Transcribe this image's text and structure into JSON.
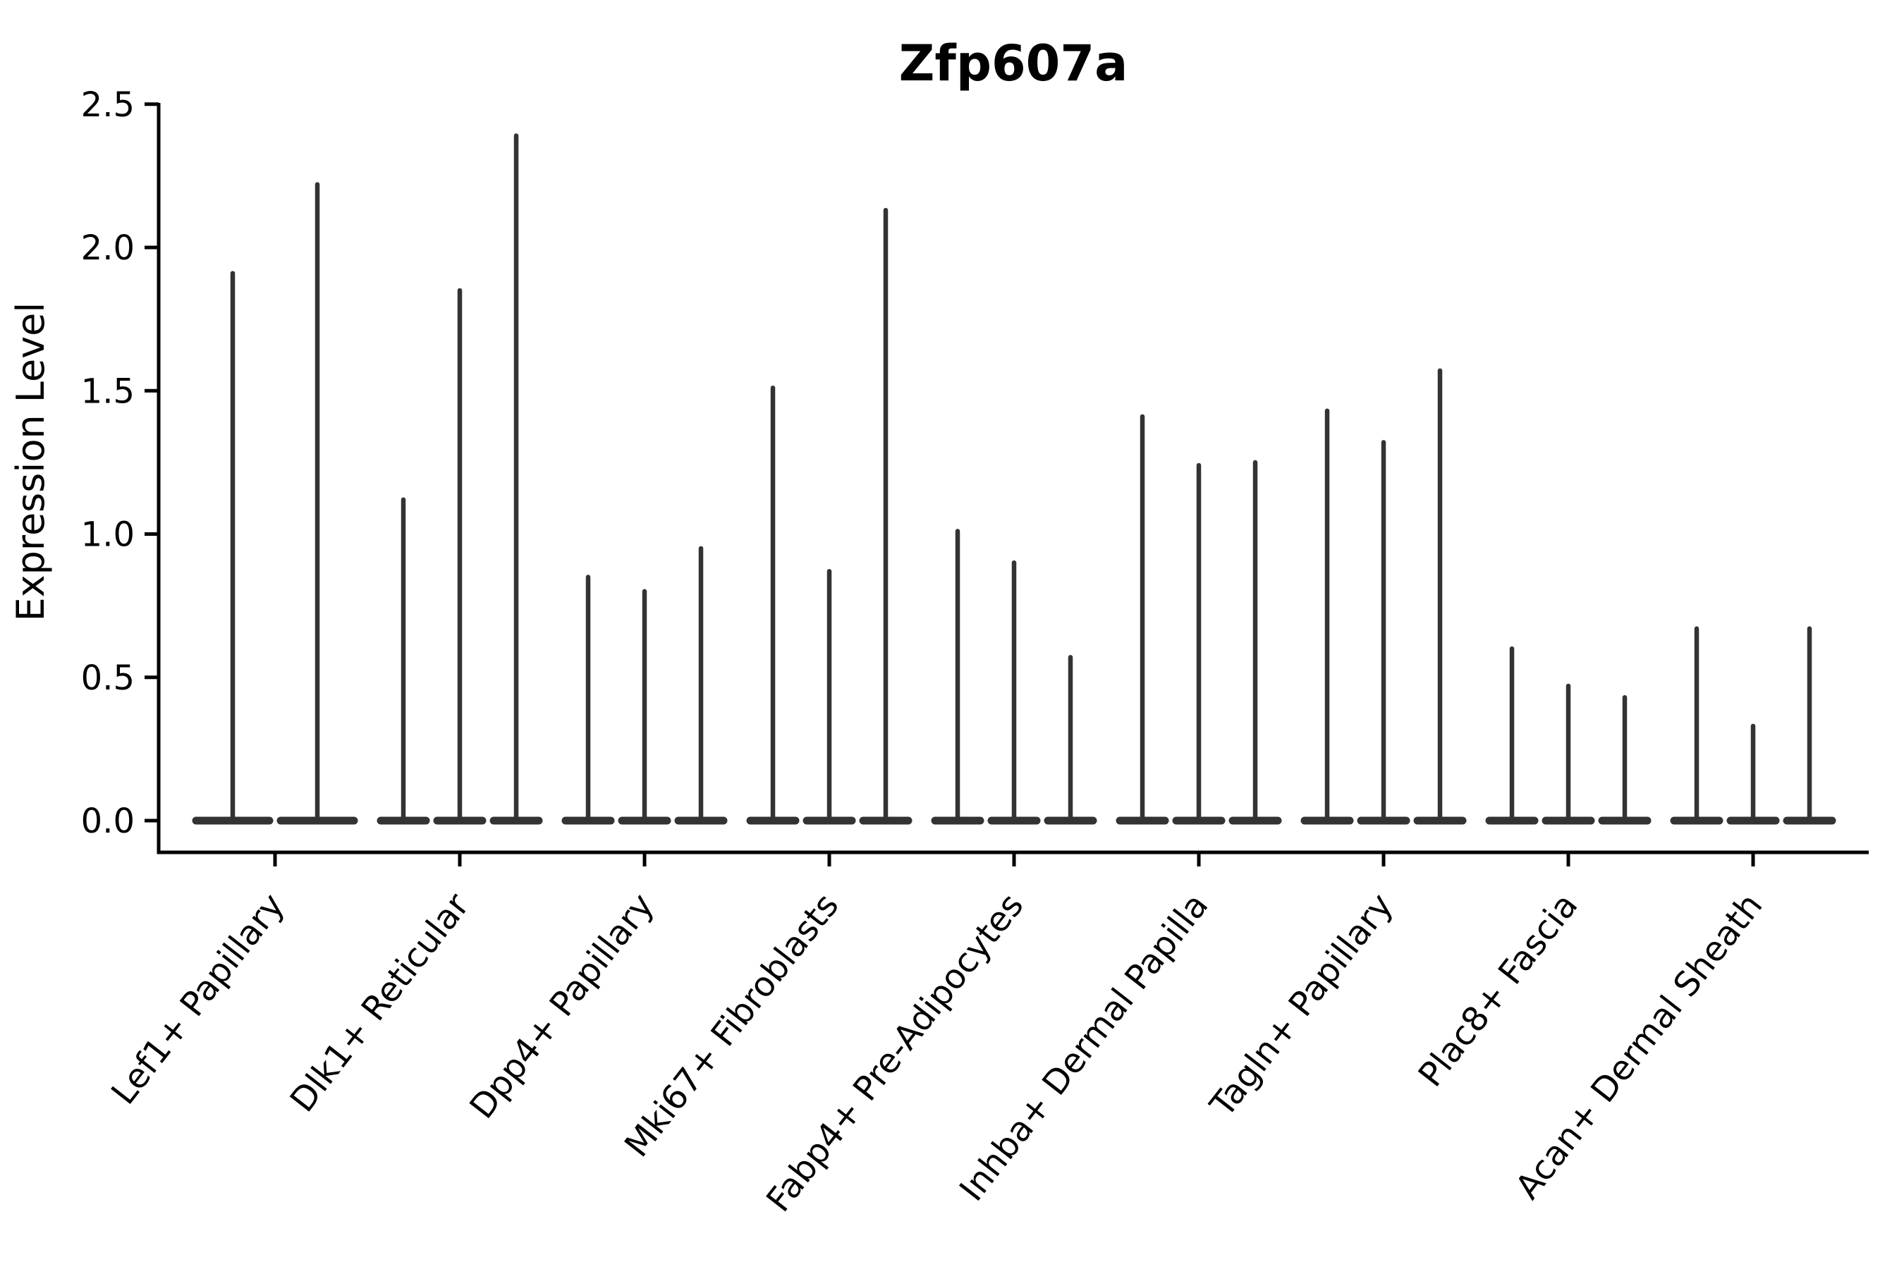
{
  "chart_data": {
    "type": "violin",
    "title": "Zfp607a",
    "xlabel": "",
    "ylabel": "Expression Level",
    "legend": "none",
    "grid": false,
    "ylim_display": [
      -0.11,
      2.5
    ],
    "y_tick_values": [
      0.0,
      0.5,
      1.0,
      1.5,
      2.0,
      2.5
    ],
    "y_tick_labels": [
      "0.0",
      "0.5",
      "1.0",
      "1.5",
      "2.0",
      "2.5"
    ],
    "categories": [
      "Lef1+ Papillary",
      "Dlk1+ Reticular",
      "Dpp4+ Papillary",
      "Mki67+ Fibroblasts",
      "Fabp4+ Pre-Adipocytes",
      "Inhba+ Dermal Papilla",
      "Tagln+ Papillary",
      "Plac8+ Fascia",
      "Acan+ Dermal Sheath"
    ],
    "groups": [
      {
        "label": "Lef1+ Papillary",
        "violin_peaks": [
          1.91,
          2.22
        ]
      },
      {
        "label": "Dlk1+ Reticular",
        "violin_peaks": [
          1.12,
          1.85,
          2.39
        ]
      },
      {
        "label": "Dpp4+ Papillary",
        "violin_peaks": [
          0.85,
          0.8,
          0.95
        ]
      },
      {
        "label": "Mki67+ Fibroblasts",
        "violin_peaks": [
          1.51,
          0.87,
          2.13
        ]
      },
      {
        "label": "Fabp4+ Pre-Adipocytes",
        "violin_peaks": [
          1.01,
          0.9,
          0.57
        ]
      },
      {
        "label": "Inhba+ Dermal Papilla",
        "violin_peaks": [
          1.41,
          1.24,
          1.25
        ]
      },
      {
        "label": "Tagln+ Papillary",
        "violin_peaks": [
          1.43,
          1.32,
          1.57
        ]
      },
      {
        "label": "Plac8+ Fascia",
        "violin_peaks": [
          0.6,
          0.47,
          0.43
        ]
      },
      {
        "label": "Acan+ Dermal Sheath",
        "violin_peaks": [
          0.67,
          0.33,
          0.67
        ]
      }
    ],
    "violin_description": "Each violin is an extremely narrow density: a wide flat base at expression 0 with a thin vertical tail rising to the listed peak value.",
    "colors": {
      "violin_stroke": "#333333",
      "axis": "#000000",
      "text": "#000000",
      "background": "#ffffff"
    }
  }
}
